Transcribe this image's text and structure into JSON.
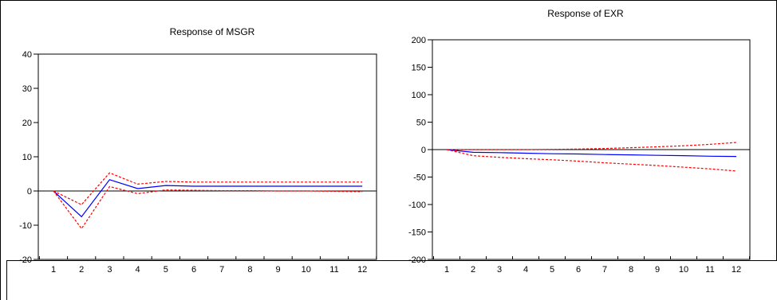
{
  "chart_data": [
    {
      "type": "line",
      "title": "Response of MSGR",
      "xlabel": "",
      "ylabel": "",
      "categories": [
        "1",
        "2",
        "3",
        "4",
        "5",
        "6",
        "7",
        "8",
        "9",
        "10",
        "11",
        "12"
      ],
      "ylim": [
        -20,
        40
      ],
      "yticks": [
        40,
        30,
        20,
        10,
        0,
        -10,
        -20
      ],
      "ytick_labels": [
        "40",
        "30",
        "20",
        "10",
        "0",
        "-10",
        "-20"
      ],
      "grid": false,
      "zero_line": true,
      "series": [
        {
          "color": "#0000ff",
          "style": "solid",
          "values": [
            0,
            -7.5,
            3.3,
            0.7,
            1.6,
            1.4,
            1.4,
            1.4,
            1.4,
            1.4,
            1.4,
            1.4
          ]
        },
        {
          "color": "#ff0000",
          "style": "dashed",
          "values": [
            0,
            -4.0,
            5.3,
            2.0,
            2.8,
            2.6,
            2.6,
            2.6,
            2.6,
            2.6,
            2.6,
            2.6
          ]
        },
        {
          "color": "#ff0000",
          "style": "dashed",
          "values": [
            0,
            -11.0,
            1.3,
            -0.8,
            0.3,
            0.2,
            0.1,
            0.1,
            0.0,
            0.0,
            -0.1,
            -0.2
          ]
        }
      ]
    },
    {
      "type": "line",
      "title": "Response of EXR",
      "xlabel": "",
      "ylabel": "",
      "categories": [
        "1",
        "2",
        "3",
        "4",
        "5",
        "6",
        "7",
        "8",
        "9",
        "10",
        "11",
        "12"
      ],
      "ylim": [
        -200,
        200
      ],
      "yticks": [
        200,
        150,
        100,
        50,
        0,
        -50,
        -100,
        -150,
        -200
      ],
      "ytick_labels": [
        "200",
        "150",
        "100",
        "50",
        "0",
        "-50",
        "-100",
        "-150",
        "-200"
      ],
      "grid": false,
      "zero_line": true,
      "series": [
        {
          "color": "#0000ff",
          "style": "solid",
          "values": [
            0,
            -5,
            -5.5,
            -6.5,
            -7.5,
            -8,
            -9,
            -9.5,
            -10.5,
            -11,
            -12,
            -12.5
          ]
        },
        {
          "color": "#ff0000",
          "style": "dashed",
          "values": [
            0,
            0,
            0,
            0,
            0.5,
            1,
            2,
            3.5,
            5,
            7,
            9.5,
            13
          ]
        },
        {
          "color": "#ff0000",
          "style": "dashed",
          "values": [
            0,
            -11,
            -14,
            -16.5,
            -18.5,
            -21,
            -24,
            -26.5,
            -29,
            -32,
            -35,
            -39
          ]
        }
      ]
    }
  ]
}
